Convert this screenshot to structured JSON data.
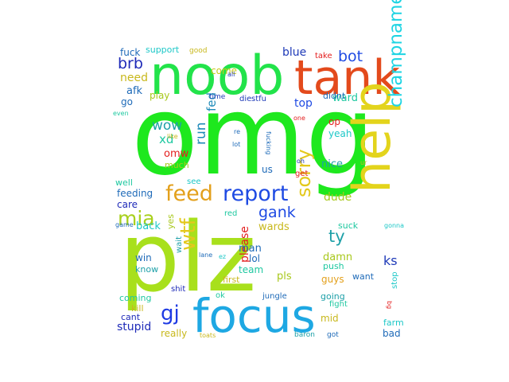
{
  "words": [
    {
      "text": "omg",
      "color": "#1ee81e"
    },
    {
      "text": "plz",
      "color": "#a8e01c"
    },
    {
      "text": "noob",
      "color": "#22e34a"
    },
    {
      "text": "tank",
      "color": "#e34a1c"
    },
    {
      "text": "focus",
      "color": "#1ea8e3"
    },
    {
      "text": "help",
      "color": "#e3d41c"
    },
    {
      "text": "report",
      "color": "#1e4ae3"
    },
    {
      "text": "feed",
      "color": "#e3a01c"
    },
    {
      "text": "champname",
      "color": "#1ed4e3"
    },
    {
      "text": "mia",
      "color": "#a8d01c"
    },
    {
      "text": "wtf",
      "color": "#e3c81c"
    },
    {
      "text": "sorry",
      "color": "#e3c81c"
    },
    {
      "text": "gank",
      "color": "#1e4ae3"
    },
    {
      "text": "ty",
      "color": "#1ea0a8"
    },
    {
      "text": "gj",
      "color": "#1e3ae3"
    },
    {
      "text": "bot",
      "color": "#1e4ae3"
    },
    {
      "text": "brb",
      "color": "#1e2ab8"
    },
    {
      "text": "wow",
      "color": "#1ea0a8"
    },
    {
      "text": "xd",
      "color": "#1ec8a0"
    },
    {
      "text": "omw",
      "color": "#e31e1e"
    },
    {
      "text": "much",
      "color": "#a8c81c"
    },
    {
      "text": "run",
      "color": "#1e8ab8"
    },
    {
      "text": "fed",
      "color": "#1e8ab8"
    },
    {
      "text": "afk",
      "color": "#1e6ab8"
    },
    {
      "text": "need",
      "color": "#c8b81c"
    },
    {
      "text": "play",
      "color": "#a8c81c"
    },
    {
      "text": "go",
      "color": "#1e6ab8"
    },
    {
      "text": "top",
      "color": "#1e4ae3"
    },
    {
      "text": "blue",
      "color": "#1e3ab8"
    },
    {
      "text": "come",
      "color": "#c8c81c"
    },
    {
      "text": "support",
      "color": "#1ec8c8"
    },
    {
      "text": "fuck",
      "color": "#1e6ab8"
    },
    {
      "text": "good",
      "color": "#c8b81c"
    },
    {
      "text": "take",
      "color": "#e31e1e"
    },
    {
      "text": "ward",
      "color": "#1ec8a0"
    },
    {
      "text": "didnt",
      "color": "#1e6ab8"
    },
    {
      "text": "op",
      "color": "#e31e1e"
    },
    {
      "text": "yeah",
      "color": "#1ec8c8"
    },
    {
      "text": "nice",
      "color": "#1ea0a8"
    },
    {
      "text": "dude",
      "color": "#a8c81c"
    },
    {
      "text": "feeding",
      "color": "#1e6ab8"
    },
    {
      "text": "care",
      "color": "#1e2ab8"
    },
    {
      "text": "well",
      "color": "#1ec8a0"
    },
    {
      "text": "see",
      "color": "#1ec8c8"
    },
    {
      "text": "back",
      "color": "#1ec8c8"
    },
    {
      "text": "yes",
      "color": "#a8c81c"
    },
    {
      "text": "please",
      "color": "#e31e1e"
    },
    {
      "text": "wards",
      "color": "#c8b81c"
    },
    {
      "text": "man",
      "color": "#1e6ab8"
    },
    {
      "text": "lol",
      "color": "#1e6ab8"
    },
    {
      "text": "team",
      "color": "#1ec8a0"
    },
    {
      "text": "pls",
      "color": "#a8c81c"
    },
    {
      "text": "first",
      "color": "#c8b81c"
    },
    {
      "text": "suck",
      "color": "#1ec8a0"
    },
    {
      "text": "damn",
      "color": "#a8c81c"
    },
    {
      "text": "push",
      "color": "#1ec8a0"
    },
    {
      "text": "guys",
      "color": "#e3a01c"
    },
    {
      "text": "ks",
      "color": "#1e3ab8"
    },
    {
      "text": "want",
      "color": "#1e6ab8"
    },
    {
      "text": "stop",
      "color": "#1ec8c8"
    },
    {
      "text": "mid",
      "color": "#c8b81c"
    },
    {
      "text": "going",
      "color": "#1ea0a8"
    },
    {
      "text": "fight",
      "color": "#1ec8a0"
    },
    {
      "text": "farm",
      "color": "#1ec8c8"
    },
    {
      "text": "bad",
      "color": "#1e6ab8"
    },
    {
      "text": "win",
      "color": "#1e6ab8"
    },
    {
      "text": "know",
      "color": "#1ea0a8"
    },
    {
      "text": "coming",
      "color": "#1ec8a0"
    },
    {
      "text": "wait",
      "color": "#1ea0a8"
    },
    {
      "text": "kill",
      "color": "#c8b81c"
    },
    {
      "text": "cant",
      "color": "#1e2ab8"
    },
    {
      "text": "stupid",
      "color": "#1e2ab8"
    },
    {
      "text": "really",
      "color": "#c8b81c"
    },
    {
      "text": "shit",
      "color": "#1e2ab8"
    },
    {
      "text": "ok",
      "color": "#1ec8a0"
    },
    {
      "text": "jungle",
      "color": "#1e6ab8"
    },
    {
      "text": "baron",
      "color": "#1ea0a8"
    },
    {
      "text": "got",
      "color": "#1e6ab8"
    },
    {
      "text": "red",
      "color": "#1ec8a0"
    },
    {
      "text": "us",
      "color": "#1e6ab8"
    },
    {
      "text": "get",
      "color": "#e31e1e"
    },
    {
      "text": "like",
      "color": "#c8b81c"
    },
    {
      "text": "die",
      "color": "#1e3ab8"
    },
    {
      "text": "stfu",
      "color": "#1e3ab8"
    },
    {
      "text": "time",
      "color": "#1e3ab8"
    },
    {
      "text": "all",
      "color": "#1e3ab8"
    },
    {
      "text": "even",
      "color": "#1ec8a0"
    },
    {
      "text": "one",
      "color": "#e31e1e"
    },
    {
      "text": "lot",
      "color": "#1e6ab8"
    },
    {
      "text": "re",
      "color": "#1e6ab8"
    },
    {
      "text": "oh",
      "color": "#1e3ab8"
    },
    {
      "text": "fucking",
      "color": "#1e6ab8"
    },
    {
      "text": "ur",
      "color": "#c8b81c"
    },
    {
      "text": "game",
      "color": "#1e6ab8"
    },
    {
      "text": "gonna",
      "color": "#1ec8c8"
    },
    {
      "text": "lane",
      "color": "#1e6ab8"
    },
    {
      "text": "ez",
      "color": "#1ec8c8"
    },
    {
      "text": "bg",
      "color": "#e31e1e"
    },
    {
      "text": "toats",
      "color": "#c8b81c"
    }
  ]
}
